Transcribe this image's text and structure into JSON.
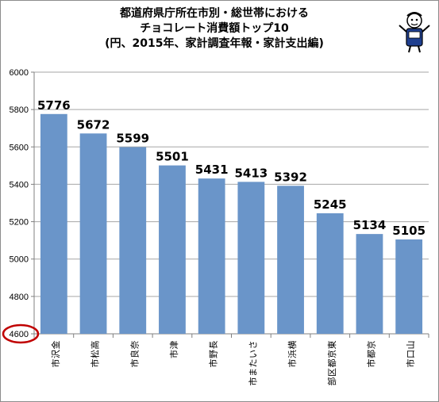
{
  "title": {
    "line1": "都道府県庁所在市別・総世帯における",
    "line2": "チョコレート消費額トップ10",
    "line3": "(円、2015年、家計調査年報・家計支出編)"
  },
  "colors": {
    "bar": "#6a95c9",
    "circle": "#c00000",
    "gridline": "#a6a6a6"
  },
  "chart_data": {
    "type": "bar",
    "title": "都道府県庁所在市別・総世帯における チョコレート消費額トップ10 (円、2015年、家計調査年報・家計支出編)",
    "categories": [
      "金沢市",
      "高松市",
      "奈良市",
      "津市",
      "長野市",
      "さいたま市",
      "横浜市",
      "東京都区部",
      "京都市",
      "山口市"
    ],
    "values": [
      5776,
      5672,
      5599,
      5501,
      5431,
      5413,
      5392,
      5245,
      5134,
      5105
    ],
    "yticks": [
      4600,
      4800,
      5000,
      5200,
      5400,
      5600,
      5800,
      6000
    ],
    "ylim": [
      4600,
      6000
    ],
    "grid": true,
    "legend": "none",
    "data_labels": true,
    "highlight": "circle around 4600 axis label"
  }
}
